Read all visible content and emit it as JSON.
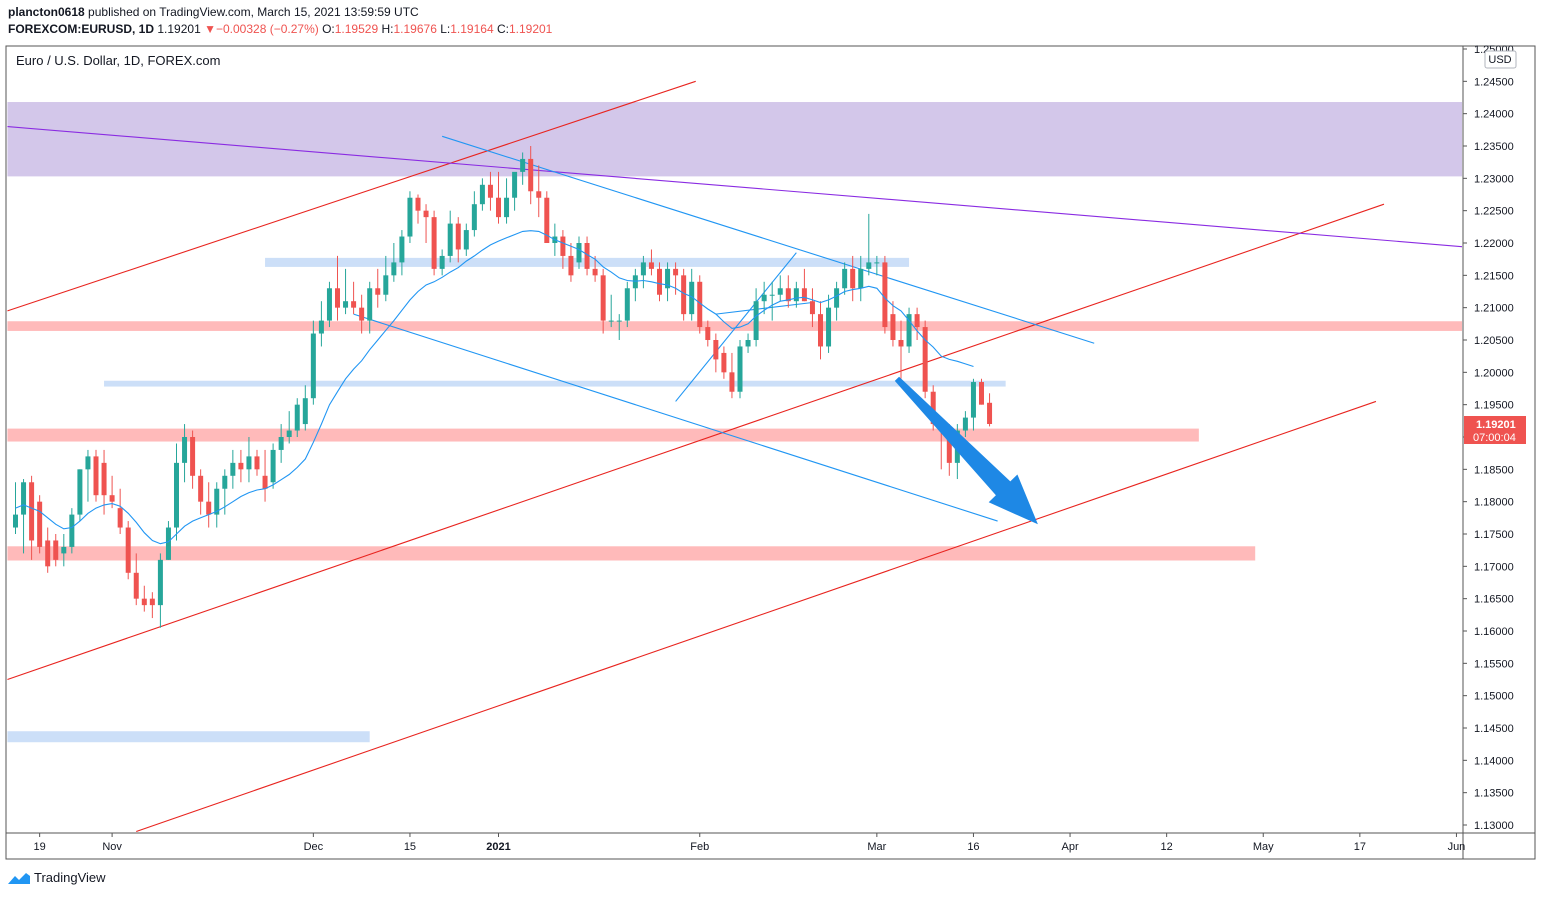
{
  "header": {
    "author": "plancton0618",
    "published_text": "published on TradingView.com, March 15, 2021 13:59:59 UTC",
    "symbol": "FOREXCOM:EURUSD, 1D",
    "last": "1.19201",
    "change_arrow": "▼",
    "change": "−0.00328 (−0.27%)",
    "o_label": "O:",
    "o_value": "1.19529",
    "h_label": "H:",
    "h_value": "1.19676",
    "l_label": "L:",
    "l_value": "1.19164",
    "c_label": "C:",
    "c_value": "1.19201"
  },
  "chart_title": "Euro / U.S. Dollar, 1D, FOREX.com",
  "currency_label": "USD",
  "price_tag": {
    "price": "1.19201",
    "countdown": "07:00:04"
  },
  "footer": {
    "brand": "TradingView",
    "logo_icon": "tradingview-logo-icon"
  },
  "colors": {
    "up": "#26a69a",
    "down": "#ef5350",
    "channel_red": "#e8241f",
    "trend_purple": "#8a2be2",
    "blue_line": "#2196f3",
    "arrow_blue": "#1e88e5",
    "zone_pink": "#ffb3b3",
    "zone_blue": "#c7dbf7",
    "zone_purple": "#d1c4e9"
  },
  "chart_data": {
    "type": "candlestick",
    "title": "Euro / U.S. Dollar, 1D, FOREX.com",
    "ylim": [
      1.13,
      1.25
    ],
    "y_ticks": [
      "1.13000",
      "1.13500",
      "1.14000",
      "1.14500",
      "1.15000",
      "1.15500",
      "1.16000",
      "1.16500",
      "1.17000",
      "1.17500",
      "1.18000",
      "1.18500",
      "1.19000",
      "1.19500",
      "1.20000",
      "1.20500",
      "1.21000",
      "1.21500",
      "1.22000",
      "1.22500",
      "1.23000",
      "1.23500",
      "1.24000",
      "1.24500",
      "1.25000"
    ],
    "x_ticks": [
      "19",
      "Nov",
      "Dec",
      "15",
      "2021",
      "Feb",
      "Mar",
      "16",
      "Apr",
      "12",
      "May",
      "17",
      "Jun"
    ],
    "x_tick_bold": [
      false,
      false,
      false,
      false,
      true,
      false,
      false,
      false,
      false,
      false,
      false,
      false,
      false
    ],
    "x_tick_index": [
      3,
      12,
      37,
      49,
      60,
      85,
      107,
      119,
      131,
      143,
      155,
      167,
      179
    ],
    "candles": [
      [
        1.176,
        1.183,
        1.175,
        1.178
      ],
      [
        1.178,
        1.1835,
        1.172,
        1.183
      ],
      [
        1.183,
        1.184,
        1.171,
        1.174
      ],
      [
        1.18,
        1.181,
        1.172,
        1.173
      ],
      [
        1.174,
        1.176,
        1.169,
        1.17
      ],
      [
        1.174,
        1.175,
        1.17,
        1.171
      ],
      [
        1.172,
        1.175,
        1.17,
        1.173
      ],
      [
        1.173,
        1.179,
        1.172,
        1.178
      ],
      [
        1.178,
        1.185,
        1.177,
        1.185
      ],
      [
        1.185,
        1.188,
        1.18,
        1.187
      ],
      [
        1.187,
        1.188,
        1.18,
        1.181
      ],
      [
        1.186,
        1.188,
        1.178,
        1.181
      ],
      [
        1.181,
        1.184,
        1.179,
        1.18
      ],
      [
        1.179,
        1.182,
        1.175,
        1.176
      ],
      [
        1.176,
        1.177,
        1.168,
        1.169
      ],
      [
        1.169,
        1.172,
        1.164,
        1.165
      ],
      [
        1.165,
        1.167,
        1.163,
        1.164
      ],
      [
        1.165,
        1.166,
        1.162,
        1.164
      ],
      [
        1.164,
        1.172,
        1.1605,
        1.171
      ],
      [
        1.171,
        1.177,
        1.171,
        1.176
      ],
      [
        1.176,
        1.189,
        1.174,
        1.186
      ],
      [
        1.186,
        1.192,
        1.183,
        1.19
      ],
      [
        1.19,
        1.191,
        1.182,
        1.184
      ],
      [
        1.184,
        1.185,
        1.178,
        1.18
      ],
      [
        1.18,
        1.183,
        1.176,
        1.178
      ],
      [
        1.178,
        1.183,
        1.176,
        1.182
      ],
      [
        1.182,
        1.185,
        1.178,
        1.184
      ],
      [
        1.184,
        1.188,
        1.182,
        1.186
      ],
      [
        1.186,
        1.188,
        1.183,
        1.185
      ],
      [
        1.185,
        1.19,
        1.183,
        1.187
      ],
      [
        1.187,
        1.188,
        1.184,
        1.185
      ],
      [
        1.184,
        1.188,
        1.18,
        1.182
      ],
      [
        1.183,
        1.189,
        1.182,
        1.188
      ],
      [
        1.188,
        1.192,
        1.186,
        1.19
      ],
      [
        1.19,
        1.194,
        1.189,
        1.191
      ],
      [
        1.191,
        1.196,
        1.19,
        1.195
      ],
      [
        1.192,
        1.198,
        1.191,
        1.196
      ],
      [
        1.196,
        1.208,
        1.195,
        1.206
      ],
      [
        1.206,
        1.211,
        1.204,
        1.208
      ],
      [
        1.208,
        1.214,
        1.207,
        1.213
      ],
      [
        1.213,
        1.218,
        1.208,
        1.21
      ],
      [
        1.21,
        1.216,
        1.209,
        1.211
      ],
      [
        1.211,
        1.214,
        1.209,
        1.21
      ],
      [
        1.21,
        1.212,
        1.206,
        1.208
      ],
      [
        1.208,
        1.214,
        1.206,
        1.213
      ],
      [
        1.213,
        1.216,
        1.21,
        1.212
      ],
      [
        1.212,
        1.218,
        1.211,
        1.215
      ],
      [
        1.215,
        1.22,
        1.214,
        1.217
      ],
      [
        1.217,
        1.222,
        1.215,
        1.221
      ],
      [
        1.221,
        1.228,
        1.22,
        1.227
      ],
      [
        1.227,
        1.2275,
        1.223,
        1.225
      ],
      [
        1.225,
        1.226,
        1.22,
        1.224
      ],
      [
        1.224,
        1.225,
        1.215,
        1.216
      ],
      [
        1.216,
        1.219,
        1.215,
        1.218
      ],
      [
        1.218,
        1.225,
        1.217,
        1.223
      ],
      [
        1.223,
        1.224,
        1.217,
        1.219
      ],
      [
        1.219,
        1.223,
        1.218,
        1.222
      ],
      [
        1.222,
        1.228,
        1.221,
        1.226
      ],
      [
        1.226,
        1.23,
        1.225,
        1.229
      ],
      [
        1.229,
        1.231,
        1.225,
        1.227
      ],
      [
        1.227,
        1.231,
        1.223,
        1.224
      ],
      [
        1.224,
        1.23,
        1.223,
        1.227
      ],
      [
        1.227,
        1.23,
        1.225,
        1.231
      ],
      [
        1.231,
        1.234,
        1.229,
        1.233
      ],
      [
        1.233,
        1.235,
        1.226,
        1.228
      ],
      [
        1.228,
        1.232,
        1.224,
        1.227
      ],
      [
        1.227,
        1.228,
        1.22,
        1.22
      ],
      [
        1.22,
        1.223,
        1.218,
        1.221
      ],
      [
        1.221,
        1.222,
        1.216,
        1.218
      ],
      [
        1.218,
        1.22,
        1.214,
        1.215
      ],
      [
        1.217,
        1.221,
        1.216,
        1.22
      ],
      [
        1.22,
        1.221,
        1.215,
        1.216
      ],
      [
        1.216,
        1.218,
        1.214,
        1.215
      ],
      [
        1.215,
        1.216,
        1.206,
        1.208
      ],
      [
        1.208,
        1.212,
        1.207,
        1.208
      ],
      [
        1.208,
        1.209,
        1.205,
        1.208
      ],
      [
        1.208,
        1.214,
        1.207,
        1.213
      ],
      [
        1.213,
        1.216,
        1.211,
        1.215
      ],
      [
        1.215,
        1.218,
        1.213,
        1.217
      ],
      [
        1.217,
        1.219,
        1.215,
        1.216
      ],
      [
        1.216,
        1.217,
        1.211,
        1.212
      ],
      [
        1.213,
        1.217,
        1.211,
        1.216
      ],
      [
        1.216,
        1.217,
        1.212,
        1.215
      ],
      [
        1.215,
        1.216,
        1.208,
        1.209
      ],
      [
        1.209,
        1.216,
        1.208,
        1.214
      ],
      [
        1.214,
        1.215,
        1.206,
        1.207
      ],
      [
        1.207,
        1.208,
        1.204,
        1.205
      ],
      [
        1.205,
        1.206,
        1.2,
        1.202
      ],
      [
        1.203,
        1.204,
        1.199,
        1.2
      ],
      [
        1.2,
        1.203,
        1.196,
        1.197
      ],
      [
        1.197,
        1.205,
        1.196,
        1.204
      ],
      [
        1.204,
        1.206,
        1.203,
        1.205
      ],
      [
        1.205,
        1.213,
        1.204,
        1.211
      ],
      [
        1.211,
        1.214,
        1.209,
        1.212
      ],
      [
        1.212,
        1.214,
        1.208,
        1.212
      ],
      [
        1.212,
        1.215,
        1.211,
        1.213
      ],
      [
        1.213,
        1.215,
        1.21,
        1.211
      ],
      [
        1.211,
        1.214,
        1.21,
        1.213
      ],
      [
        1.213,
        1.216,
        1.211,
        1.211
      ],
      [
        1.211,
        1.213,
        1.207,
        1.209
      ],
      [
        1.209,
        1.211,
        1.202,
        1.204
      ],
      [
        1.204,
        1.212,
        1.203,
        1.21
      ],
      [
        1.21,
        1.214,
        1.208,
        1.213
      ],
      [
        1.213,
        1.217,
        1.212,
        1.216
      ],
      [
        1.216,
        1.218,
        1.211,
        1.213
      ],
      [
        1.213,
        1.218,
        1.211,
        1.216
      ],
      [
        1.216,
        1.2245,
        1.215,
        1.217
      ],
      [
        1.217,
        1.218,
        1.215,
        1.217
      ],
      [
        1.217,
        1.218,
        1.206,
        1.207
      ],
      [
        1.209,
        1.211,
        1.204,
        1.205
      ],
      [
        1.205,
        1.208,
        1.199,
        1.204
      ],
      [
        1.204,
        1.21,
        1.203,
        1.209
      ],
      [
        1.209,
        1.21,
        1.205,
        1.207
      ],
      [
        1.207,
        1.208,
        1.196,
        1.197
      ],
      [
        1.197,
        1.198,
        1.191,
        1.192
      ],
      [
        1.192,
        1.193,
        1.185,
        1.191
      ],
      [
        1.191,
        1.192,
        1.184,
        1.186
      ],
      [
        1.186,
        1.192,
        1.1835,
        1.191
      ],
      [
        1.191,
        1.194,
        1.19,
        1.193
      ],
      [
        1.193,
        1.199,
        1.191,
        1.1985
      ],
      [
        1.1985,
        1.199,
        1.195,
        1.195
      ],
      [
        1.19529,
        1.19676,
        1.19164,
        1.19201
      ]
    ],
    "moving_average": [
      1.179,
      1.1795,
      1.179,
      1.1785,
      1.1775,
      1.1765,
      1.1758,
      1.176,
      1.177,
      1.1782,
      1.179,
      1.1795,
      1.1797,
      1.1793,
      1.1782,
      1.1768,
      1.1752,
      1.174,
      1.1735,
      1.1738,
      1.175,
      1.1762,
      1.177,
      1.1775,
      1.178,
      1.1785,
      1.1792,
      1.18,
      1.1808,
      1.1814,
      1.1818,
      1.182,
      1.1826,
      1.1834,
      1.1842,
      1.1853,
      1.1866,
      1.1892,
      1.192,
      1.195,
      1.197,
      1.199,
      1.2005,
      1.2018,
      1.2035,
      1.205,
      1.2065,
      1.208,
      1.2096,
      1.2112,
      1.2125,
      1.2135,
      1.214,
      1.2147,
      1.2155,
      1.2162,
      1.2172,
      1.218,
      1.2189,
      1.2197,
      1.2203,
      1.2208,
      1.2213,
      1.2218,
      1.2219,
      1.2218,
      1.2212,
      1.2205,
      1.22,
      1.2195,
      1.219,
      1.2182,
      1.2175,
      1.2163,
      1.2155,
      1.2146,
      1.2142,
      1.2141,
      1.2142,
      1.214,
      1.2137,
      1.2135,
      1.213,
      1.2122,
      1.2117,
      1.2107,
      1.2098,
      1.209,
      1.2078,
      1.2068,
      1.207,
      1.2075,
      1.2087,
      1.2096,
      1.2104,
      1.211,
      1.2112,
      1.2115,
      1.2116,
      1.2112,
      1.2108,
      1.2112,
      1.2118,
      1.2125,
      1.2128,
      1.213,
      1.2133,
      1.213,
      1.2115,
      1.2103,
      1.2095,
      1.208,
      1.2064,
      1.205,
      1.2039,
      1.2025,
      1.202,
      1.2017,
      1.2013,
      1.2009
    ],
    "zones": [
      {
        "kind": "purple",
        "y1": 1.2303,
        "y2": 1.2418,
        "x1": -1,
        "x2": 180
      },
      {
        "kind": "blue",
        "y1": 1.2163,
        "y2": 1.2177,
        "x1": 31,
        "x2": 111
      },
      {
        "kind": "pink",
        "y1": 1.2064,
        "y2": 1.2079,
        "x1": -1,
        "x2": 180
      },
      {
        "kind": "blue",
        "y1": 1.1978,
        "y2": 1.1987,
        "x1": 11,
        "x2": 123
      },
      {
        "kind": "pink",
        "y1": 1.1893,
        "y2": 1.1913,
        "x1": -1,
        "x2": 147
      },
      {
        "kind": "pink",
        "y1": 1.1709,
        "y2": 1.1731,
        "x1": -1,
        "x2": 154
      },
      {
        "kind": "blue",
        "y1": 1.1428,
        "y2": 1.1445,
        "x1": -1,
        "x2": 44
      }
    ],
    "trend_lines": [
      {
        "kind": "red",
        "from": [
          -1,
          1.2095
        ],
        "to": [
          84.5,
          1.245
        ]
      },
      {
        "kind": "red",
        "from": [
          -1,
          1.1525
        ],
        "to": [
          170,
          1.226
        ]
      },
      {
        "kind": "red",
        "from": [
          15,
          1.129
        ],
        "to": [
          169,
          1.1955
        ]
      },
      {
        "kind": "purple",
        "from": [
          -1,
          1.238
        ],
        "to": [
          181,
          1.2193
        ]
      },
      {
        "kind": "blue",
        "from": [
          53,
          1.2365
        ],
        "to": [
          134,
          1.2045
        ]
      },
      {
        "kind": "blue",
        "from": [
          42,
          1.209
        ],
        "to": [
          122,
          1.177
        ]
      },
      {
        "kind": "blue",
        "from": [
          82,
          1.1955
        ],
        "to": [
          97,
          1.2185
        ]
      },
      {
        "kind": "blue",
        "from": [
          87,
          1.209
        ],
        "to": [
          99,
          1.2108
        ]
      }
    ],
    "arrow": {
      "from": [
        109.5,
        1.199
      ],
      "to": [
        127,
        1.1765
      ]
    }
  }
}
